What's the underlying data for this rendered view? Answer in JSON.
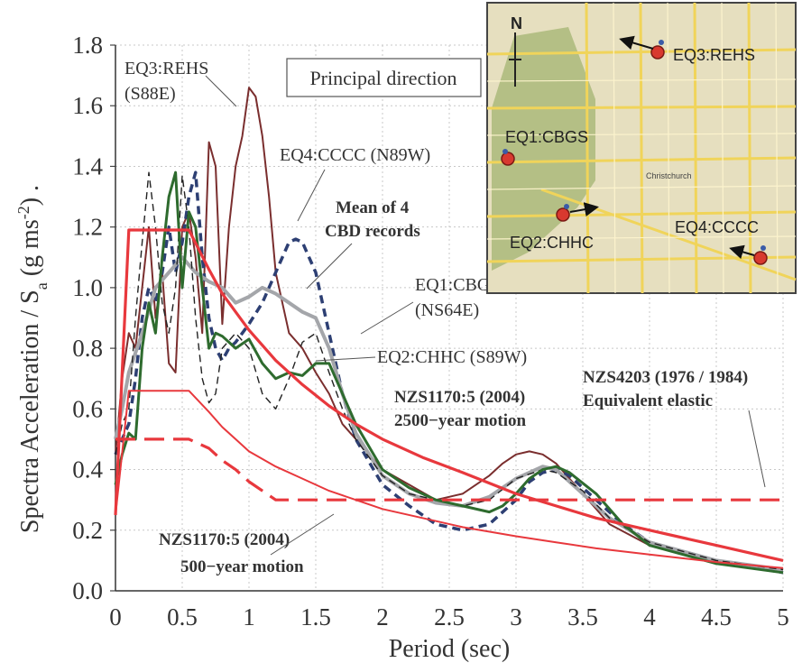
{
  "chart_data": {
    "type": "line",
    "xlabel": "Period (sec)",
    "ylabel_main": "Spectra Acceleration / S",
    "ylabel_sub": "a",
    "ylabel_unit": " (g ms",
    "ylabel_sup": "-2",
    "ylabel_end": ") .",
    "xlim": [
      0,
      5
    ],
    "ylim": [
      0,
      1.8
    ],
    "xticks": [
      "0",
      "0.5",
      "1",
      "1.5",
      "2",
      "2.5",
      "3",
      "3.5",
      "4",
      "4.5",
      "5"
    ],
    "yticks": [
      "0.0",
      "0.2",
      "0.4",
      "0.6",
      "0.8",
      "1.0",
      "1.2",
      "1.4",
      "1.6",
      "1.8"
    ],
    "grid": true,
    "legend_box": "Principal direction",
    "colors": {
      "red": "#e8383d",
      "brown": "#7a2e2e",
      "green": "#2e6b2e",
      "grey": "#a4a6aa",
      "navy": "#2d3f73",
      "black": "#222222"
    },
    "series": [
      {
        "name": "EQ3:REHS (S88E)",
        "color": "brown",
        "style": "solid",
        "x": [
          0,
          0.05,
          0.1,
          0.15,
          0.2,
          0.25,
          0.3,
          0.35,
          0.4,
          0.45,
          0.5,
          0.55,
          0.6,
          0.65,
          0.7,
          0.75,
          0.8,
          0.85,
          0.9,
          0.95,
          1.0,
          1.05,
          1.1,
          1.15,
          1.2,
          1.3,
          1.4,
          1.5,
          1.6,
          1.7,
          1.8,
          1.9,
          2.0,
          2.2,
          2.4,
          2.6,
          2.8,
          2.9,
          3.0,
          3.1,
          3.2,
          3.3,
          3.5,
          3.7,
          4.0,
          4.5,
          5.0
        ],
        "y": [
          0.45,
          0.7,
          0.85,
          0.8,
          1.0,
          1.2,
          0.9,
          1.05,
          0.75,
          0.72,
          1.2,
          1.25,
          1.1,
          0.85,
          1.48,
          1.4,
          0.88,
          1.2,
          1.4,
          1.5,
          1.66,
          1.63,
          1.5,
          1.3,
          1.05,
          0.85,
          0.8,
          0.72,
          0.65,
          0.55,
          0.5,
          0.45,
          0.4,
          0.35,
          0.3,
          0.32,
          0.38,
          0.42,
          0.45,
          0.46,
          0.45,
          0.42,
          0.32,
          0.22,
          0.15,
          0.1,
          0.07
        ]
      },
      {
        "name": "EQ4:CCCC (N89W)",
        "color": "navy",
        "style": "dashed",
        "x": [
          0,
          0.05,
          0.1,
          0.15,
          0.2,
          0.25,
          0.3,
          0.35,
          0.4,
          0.45,
          0.5,
          0.55,
          0.6,
          0.65,
          0.7,
          0.75,
          0.8,
          0.85,
          0.9,
          1.0,
          1.1,
          1.2,
          1.3,
          1.35,
          1.4,
          1.5,
          1.6,
          1.7,
          1.8,
          2.0,
          2.2,
          2.4,
          2.6,
          2.8,
          3.0,
          3.1,
          3.2,
          3.3,
          3.4,
          3.6,
          3.8,
          4.0,
          4.5,
          5.0
        ],
        "y": [
          0.45,
          0.5,
          0.55,
          0.7,
          0.9,
          1.0,
          0.95,
          1.05,
          1.2,
          1.05,
          1.15,
          1.3,
          1.38,
          1.1,
          0.9,
          0.8,
          0.76,
          0.8,
          0.82,
          0.88,
          0.95,
          1.05,
          1.15,
          1.16,
          1.15,
          1.05,
          0.85,
          0.65,
          0.5,
          0.35,
          0.28,
          0.22,
          0.2,
          0.22,
          0.3,
          0.36,
          0.39,
          0.4,
          0.38,
          0.3,
          0.22,
          0.16,
          0.1,
          0.06
        ]
      },
      {
        "name": "Mean of 4 CBD records",
        "color": "grey",
        "style": "solid",
        "x": [
          0,
          0.05,
          0.1,
          0.2,
          0.3,
          0.4,
          0.5,
          0.6,
          0.7,
          0.8,
          0.9,
          1.0,
          1.1,
          1.2,
          1.3,
          1.4,
          1.5,
          1.6,
          1.7,
          1.8,
          2.0,
          2.2,
          2.4,
          2.6,
          2.8,
          3.0,
          3.1,
          3.2,
          3.3,
          3.5,
          3.7,
          4.0,
          4.5,
          5.0
        ],
        "y": [
          0.5,
          0.6,
          0.72,
          0.85,
          1.0,
          1.05,
          1.1,
          1.05,
          1.02,
          1.0,
          0.95,
          0.97,
          1.0,
          0.98,
          0.95,
          0.92,
          0.9,
          0.8,
          0.65,
          0.52,
          0.38,
          0.32,
          0.29,
          0.28,
          0.31,
          0.37,
          0.39,
          0.41,
          0.4,
          0.32,
          0.24,
          0.16,
          0.1,
          0.07
        ]
      },
      {
        "name": "EQ1:CBGS (NS64E)",
        "color": "black",
        "style": "dashed-thin",
        "x": [
          0,
          0.05,
          0.1,
          0.15,
          0.2,
          0.25,
          0.3,
          0.35,
          0.4,
          0.45,
          0.5,
          0.55,
          0.6,
          0.65,
          0.7,
          0.75,
          0.8,
          0.9,
          1.0,
          1.1,
          1.2,
          1.3,
          1.4,
          1.5,
          1.6,
          1.7,
          1.8,
          2.0,
          2.2,
          2.4,
          2.6,
          2.8,
          3.0,
          3.2,
          3.3,
          3.5,
          3.7,
          4.0,
          4.5,
          5.0
        ],
        "y": [
          0.45,
          0.55,
          0.6,
          0.9,
          1.15,
          1.38,
          1.2,
          0.95,
          0.85,
          1.0,
          1.37,
          1.2,
          0.9,
          0.7,
          0.62,
          0.65,
          0.8,
          0.85,
          0.8,
          0.65,
          0.6,
          0.7,
          0.82,
          0.85,
          0.72,
          0.6,
          0.5,
          0.38,
          0.32,
          0.3,
          0.28,
          0.3,
          0.37,
          0.4,
          0.39,
          0.33,
          0.24,
          0.16,
          0.1,
          0.07
        ]
      },
      {
        "name": "EQ2:CHHC (S89W)",
        "color": "green",
        "style": "solid",
        "x": [
          0,
          0.05,
          0.1,
          0.15,
          0.2,
          0.25,
          0.3,
          0.35,
          0.4,
          0.45,
          0.5,
          0.55,
          0.6,
          0.65,
          0.7,
          0.75,
          0.8,
          0.9,
          1.0,
          1.1,
          1.2,
          1.3,
          1.4,
          1.5,
          1.6,
          1.7,
          1.8,
          2.0,
          2.2,
          2.4,
          2.6,
          2.8,
          2.9,
          3.0,
          3.1,
          3.2,
          3.3,
          3.4,
          3.6,
          3.8,
          4.0,
          4.5,
          5.0
        ],
        "y": [
          0.35,
          0.45,
          0.52,
          0.5,
          0.8,
          0.95,
          0.85,
          1.1,
          1.3,
          1.38,
          1.0,
          1.25,
          1.2,
          1.0,
          0.8,
          0.85,
          0.84,
          0.8,
          0.83,
          0.75,
          0.7,
          0.72,
          0.71,
          0.75,
          0.75,
          0.65,
          0.55,
          0.4,
          0.34,
          0.3,
          0.28,
          0.26,
          0.28,
          0.32,
          0.37,
          0.4,
          0.41,
          0.39,
          0.32,
          0.22,
          0.15,
          0.09,
          0.06
        ]
      },
      {
        "name": "NZS1170:5 (2004) 2500-year motion",
        "color": "red",
        "style": "thick",
        "x": [
          0,
          0.1,
          0.55,
          0.7,
          0.8,
          0.9,
          1.0,
          1.2,
          1.4,
          1.6,
          1.8,
          2.0,
          2.3,
          2.6,
          3.0,
          3.3,
          3.6,
          4.0,
          4.5,
          5.0
        ],
        "y": [
          0.25,
          1.19,
          1.19,
          1.06,
          0.98,
          0.92,
          0.86,
          0.76,
          0.68,
          0.61,
          0.55,
          0.5,
          0.44,
          0.39,
          0.32,
          0.28,
          0.24,
          0.2,
          0.15,
          0.1
        ]
      },
      {
        "name": "NZS1170:5 (2004) 500-year motion",
        "color": "red",
        "style": "solid",
        "x": [
          0,
          0.1,
          0.55,
          0.7,
          0.8,
          0.9,
          1.0,
          1.2,
          1.4,
          1.6,
          1.8,
          2.0,
          2.3,
          2.6,
          3.0,
          3.3,
          3.6,
          4.0,
          4.5,
          5.0
        ],
        "y": [
          0.25,
          0.66,
          0.66,
          0.59,
          0.54,
          0.5,
          0.46,
          0.41,
          0.37,
          0.33,
          0.3,
          0.27,
          0.24,
          0.21,
          0.18,
          0.16,
          0.14,
          0.12,
          0.095,
          0.075
        ]
      },
      {
        "name": "NZS4203 (1976 / 1984) Equivalent elastic",
        "color": "red",
        "style": "dashed-thick",
        "x": [
          0,
          0.1,
          0.55,
          0.7,
          0.8,
          0.9,
          1.0,
          1.1,
          1.2,
          1.5,
          2.0,
          3.0,
          4.0,
          5.0
        ],
        "y": [
          0.5,
          0.5,
          0.5,
          0.47,
          0.43,
          0.4,
          0.36,
          0.33,
          0.3,
          0.3,
          0.3,
          0.3,
          0.3,
          0.3
        ]
      }
    ],
    "annotations": [
      {
        "id": "eq3-line1",
        "text": "EQ3:REHS"
      },
      {
        "id": "eq3-line2",
        "text": "(S88E)"
      },
      {
        "id": "eq4",
        "text": "EQ4:CCCC (N89W)"
      },
      {
        "id": "mean1",
        "text": "Mean of 4"
      },
      {
        "id": "mean2",
        "text": "CBD records"
      },
      {
        "id": "eq1-line1",
        "text": "EQ1:CBGS"
      },
      {
        "id": "eq1-line2",
        "text": "(NS64E)"
      },
      {
        "id": "eq2",
        "text": "EQ2:CHHC (S89W)"
      },
      {
        "id": "nzs2500-1",
        "text": "NZS1170:5 (2004)"
      },
      {
        "id": "nzs2500-2",
        "text": "2500−year motion"
      },
      {
        "id": "nzs4203-1",
        "text": "NZS4203 (1976 / 1984)"
      },
      {
        "id": "nzs4203-2",
        "text": "Equivalent elastic"
      },
      {
        "id": "nzs500-1",
        "text": "NZS1170:5 (2004)"
      },
      {
        "id": "nzs500-2",
        "text": "500−year motion"
      }
    ],
    "inset_map": {
      "north": "N",
      "city_label": "Christchurch",
      "stations": [
        "EQ3:REHS",
        "EQ1:CBGS",
        "EQ2:CHHC",
        "EQ4:CCCC"
      ]
    }
  }
}
